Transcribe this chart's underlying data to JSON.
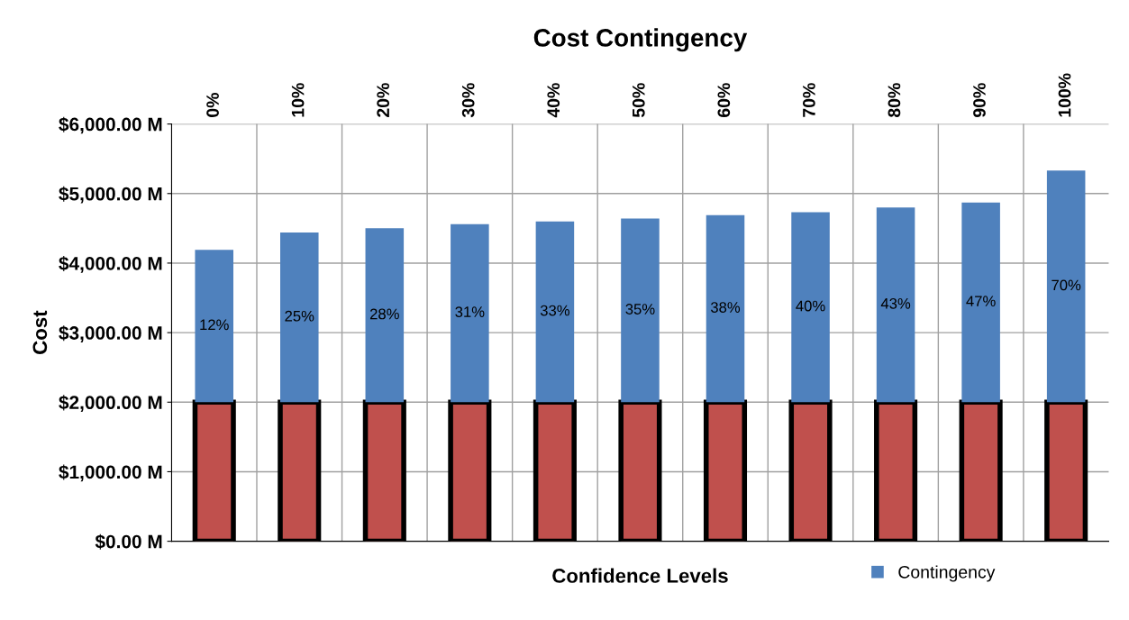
{
  "chart_data": {
    "type": "bar",
    "title": "Cost Contingency",
    "xlabel": "Confidence Levels",
    "ylabel": "Cost",
    "categories": [
      "0%",
      "10%",
      "20%",
      "30%",
      "40%",
      "50%",
      "60%",
      "70%",
      "80%",
      "90%",
      "100%"
    ],
    "stacked": true,
    "series": [
      {
        "color": "#c0504d",
        "values": [
          2000,
          2000,
          2000,
          2000,
          2000,
          2000,
          2000,
          2000,
          2000,
          2000,
          2000
        ]
      },
      {
        "name": "Contingency",
        "color": "#4f81bd",
        "values": [
          2190,
          2440,
          2500,
          2560,
          2600,
          2640,
          2690,
          2730,
          2800,
          2870,
          3330
        ]
      }
    ],
    "annotations": [
      "12%",
      "25%",
      "28%",
      "31%",
      "33%",
      "35%",
      "38%",
      "40%",
      "43%",
      "47%",
      "70%"
    ],
    "ylim": [
      0,
      6000
    ],
    "yticks": [
      {
        "value": 0,
        "label": "$0.00 M"
      },
      {
        "value": 1000,
        "label": "$1,000.00 M"
      },
      {
        "value": 2000,
        "label": "$2,000.00 M"
      },
      {
        "value": 3000,
        "label": "$3,000.00 M"
      },
      {
        "value": 4000,
        "label": "$4,000.00 M"
      },
      {
        "value": 5000,
        "label": "$5,000.00 M"
      },
      {
        "value": 6000,
        "label": "$6,000.00 M"
      }
    ],
    "grid": true,
    "legend": "bottom"
  }
}
